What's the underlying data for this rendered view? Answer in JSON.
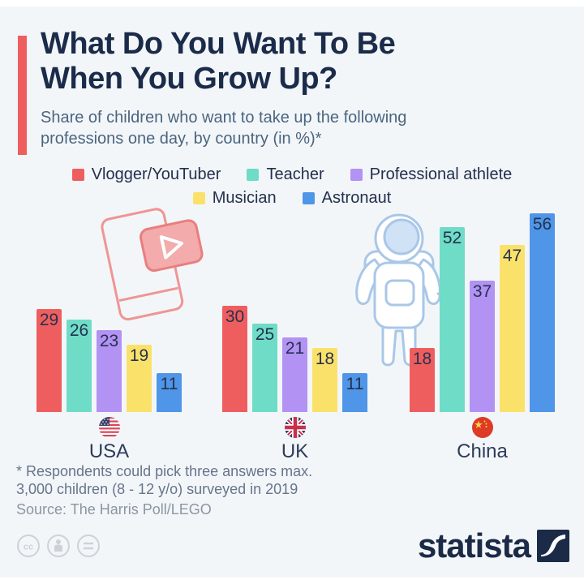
{
  "header": {
    "title_line1": "What Do You Want To Be",
    "title_line2": "When You Grow Up?",
    "subtitle_line1": "Share of children who want to take up the following",
    "subtitle_line2": "professions one day, by country (in %)*"
  },
  "chart_data": {
    "type": "bar",
    "unit": "percent",
    "series": [
      "Vlogger/YouTuber",
      "Teacher",
      "Professional athlete",
      "Musician",
      "Astronaut"
    ],
    "series_colors": [
      "#ef5e5e",
      "#6edcc6",
      "#b292f2",
      "#fae26a",
      "#4f95e8"
    ],
    "groups": [
      {
        "country": "USA",
        "flag": "usa-flag-icon",
        "values": [
          29,
          26,
          23,
          19,
          11
        ]
      },
      {
        "country": "UK",
        "flag": "uk-flag-icon",
        "values": [
          30,
          25,
          21,
          18,
          11
        ]
      },
      {
        "country": "China",
        "flag": "china-flag-icon",
        "values": [
          18,
          52,
          37,
          47,
          56
        ]
      }
    ],
    "value_labels_shown": true,
    "legend_position": "top-center",
    "grid": false,
    "decorations": [
      "youtube-phone-illustration",
      "astronaut-illustration"
    ]
  },
  "footnote": {
    "line1": "* Respondents could pick three answers max.",
    "line2": "3,000 children (8 - 12 y/o) surveyed in 2019",
    "source": "Source: The Harris Poll/LEGO"
  },
  "footer": {
    "license_icons": [
      "cc-icon",
      "attribution-person-icon",
      "equals-icon"
    ],
    "brand_text": "statista",
    "brand_color": "#1b2b47"
  },
  "colors": {
    "background": "#f3f6f9",
    "accent_red": "#ee5e5e",
    "title_navy": "#1b2b4a",
    "subtitle_gray": "#4a6580"
  }
}
